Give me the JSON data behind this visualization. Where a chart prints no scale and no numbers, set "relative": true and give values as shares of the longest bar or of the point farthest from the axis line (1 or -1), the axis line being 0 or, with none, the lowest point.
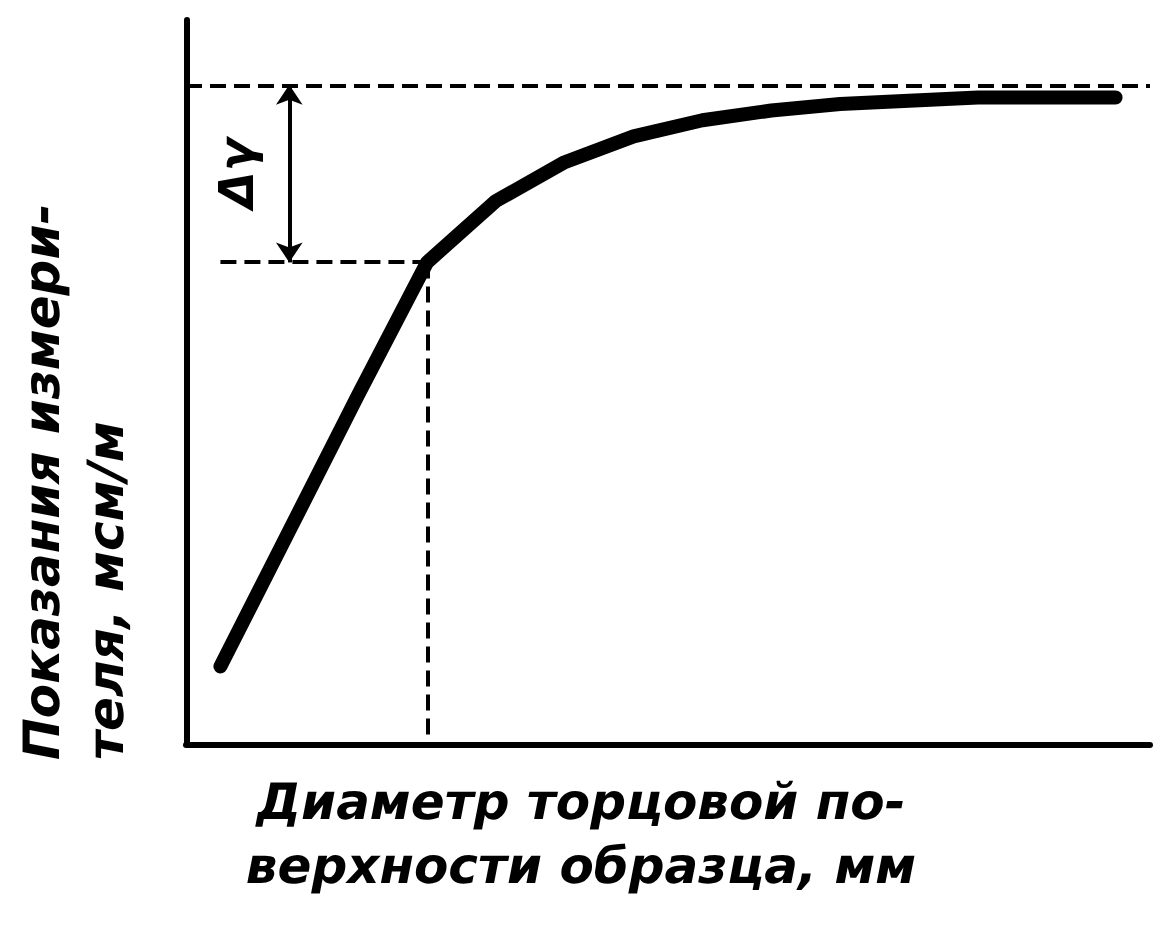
{
  "chart_data": {
    "type": "line",
    "relative": true,
    "xlabel": "Диаметр торцовой по-\nверхности образца, мм",
    "ylabel": "Показания измери-\nтеля, мсм/м",
    "categories": [
      null,
      null,
      null,
      null,
      null,
      null,
      null,
      null,
      null,
      null,
      null,
      null,
      null,
      null
    ],
    "series": [
      {
        "color": "#000000",
        "values": [
          0.12,
          0.33,
          0.54,
          0.745,
          0.84,
          0.9,
          0.94,
          0.965,
          0.98,
          0.99,
          0.995,
          1,
          1,
          1
        ]
      }
    ],
    "ref_lines": [
      {
        "axis": "y",
        "value": 1.02,
        "line_style": "dashed"
      },
      {
        "axis": "y",
        "value": 0.745,
        "line_style": "dashed"
      }
    ],
    "annotations": [
      "Δγ"
    ],
    "grid": false
  }
}
